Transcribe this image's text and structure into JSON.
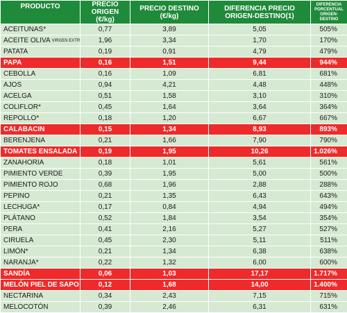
{
  "headers": {
    "product": "PRODUCTO",
    "origin": "PRECIO ORIGEN (€/kg)",
    "destination": "PRECIO DESTINO (€/kg)",
    "difference": "DIFERENCIA PRECIO ORIGEN-DESTINO(1)",
    "percent": "DIFERENCIA PORCENTUAL ORIGEN-DESTINO"
  },
  "rows": [
    {
      "name": "ACEITUNAS*",
      "origin": "0,77",
      "destination": "3,89",
      "difference": "5,05",
      "percent": "505%",
      "highlight": false
    },
    {
      "name": "ACEITE OLIVA",
      "sub": "VIRGEN EXTRA",
      "origin": "1,96",
      "destination": "3,34",
      "difference": "1,70",
      "percent": "170%",
      "highlight": false
    },
    {
      "name": "PATATA",
      "origin": "0,19",
      "destination": "0,91",
      "difference": "4,79",
      "percent": "479%",
      "highlight": false
    },
    {
      "name": "PAPA",
      "origin": "0,16",
      "destination": "1,51",
      "difference": "9,44",
      "percent": "944%",
      "highlight": true
    },
    {
      "name": "CEBOLLA",
      "origin": "0,16",
      "destination": "1,09",
      "difference": "6,81",
      "percent": "681%",
      "highlight": false
    },
    {
      "name": "AJOS",
      "origin": "0,94",
      "destination": "4,21",
      "difference": "4,48",
      "percent": "448%",
      "highlight": false
    },
    {
      "name": "ACELGA",
      "origin": "0,51",
      "destination": "1,58",
      "difference": "3,10",
      "percent": "310%",
      "highlight": false
    },
    {
      "name": "COLIFLOR*",
      "origin": "0,45",
      "destination": "1,64",
      "difference": "3,64",
      "percent": "364%",
      "highlight": false
    },
    {
      "name": "REPOLLO*",
      "origin": "0,18",
      "destination": "1,20",
      "difference": "6,67",
      "percent": "667%",
      "highlight": false
    },
    {
      "name": "CALABACIN",
      "origin": "0,15",
      "destination": "1,34",
      "difference": "8,93",
      "percent": "893%",
      "highlight": true
    },
    {
      "name": "BERENJENA",
      "origin": "0,21",
      "destination": "1,66",
      "difference": "7,90",
      "percent": "790%",
      "highlight": false
    },
    {
      "name": "TOMATES ENSALADA",
      "origin": "0,19",
      "destination": "1,95",
      "difference": "10,26",
      "percent": "1.026%",
      "highlight": true
    },
    {
      "name": "ZANAHORIA",
      "origin": "0,18",
      "destination": "1,01",
      "difference": "5,61",
      "percent": "561%",
      "highlight": false
    },
    {
      "name": "PIMIENTO VERDE",
      "origin": "0,39",
      "destination": "1,95",
      "difference": "5,00",
      "percent": "500%",
      "highlight": false
    },
    {
      "name": "PIMIENTO ROJO",
      "origin": "0,68",
      "destination": "1,96",
      "difference": "2,88",
      "percent": "288%",
      "highlight": false
    },
    {
      "name": "PEPINO",
      "origin": "0,21",
      "destination": "1,35",
      "difference": "6,43",
      "percent": "643%",
      "highlight": false
    },
    {
      "name": "LECHUGA*",
      "origin": "0,17",
      "destination": "0,84",
      "difference": "4,94",
      "percent": "494%",
      "highlight": false
    },
    {
      "name": "PLÁTANO",
      "origin": "0,52",
      "destination": "1,84",
      "difference": "3,54",
      "percent": "354%",
      "highlight": false
    },
    {
      "name": "PERA",
      "origin": "0,41",
      "destination": "2,16",
      "difference": "5,27",
      "percent": "527%",
      "highlight": false
    },
    {
      "name": "CIRUELA",
      "origin": "0,45",
      "destination": "2,30",
      "difference": "5,11",
      "percent": "511%",
      "highlight": false
    },
    {
      "name": "LIMÓN*",
      "origin": "0,21",
      "destination": "1,34",
      "difference": "6,38",
      "percent": "638%",
      "highlight": false
    },
    {
      "name": "NARANJA*",
      "origin": "0,22",
      "destination": "1,32",
      "difference": "6,00",
      "percent": "600%",
      "highlight": false
    },
    {
      "name": "SANDÍA",
      "origin": "0,06",
      "destination": "1,03",
      "difference": "17,17",
      "percent": "1.717%",
      "highlight": true
    },
    {
      "name": "MELÓN PIEL DE SAPO",
      "origin": "0,12",
      "destination": "1,68",
      "difference": "14,00",
      "percent": "1.400%",
      "highlight": true
    },
    {
      "name": "NECTARINA",
      "origin": "0,34",
      "destination": "2,43",
      "difference": "7,15",
      "percent": "715%",
      "highlight": false
    },
    {
      "name": "MELOCOTÓN",
      "origin": "0,39",
      "destination": "2,46",
      "difference": "6,31",
      "percent": "631%",
      "highlight": false
    }
  ],
  "colors": {
    "header_bg": "#1f8a3a",
    "row_bg": "#d6e9d2",
    "highlight_bg": "#ee2a2a"
  }
}
